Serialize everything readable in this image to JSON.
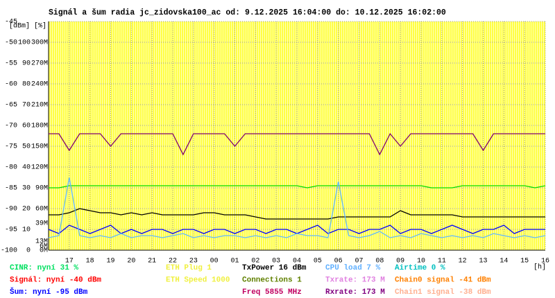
{
  "chart_data": {
    "type": "line",
    "title": "Signál a šum radia jc_zidovska100_ac od: 9.12.2025 16:04:00 do: 10.12.2025 16:02:00",
    "y_axis_unit": "[dBm]",
    "y2_axis_unit": "[%]",
    "x_label": "[h]",
    "categories": [
      null,
      null,
      "17",
      null,
      "18",
      null,
      "19",
      null,
      "20",
      null,
      "21",
      null,
      "22",
      null,
      "23",
      null,
      "00",
      null,
      "01",
      null,
      "02",
      null,
      "03",
      null,
      "04",
      null,
      "05",
      null,
      "06",
      null,
      "07",
      null,
      "08",
      null,
      "09",
      null,
      "10",
      null,
      "11",
      null,
      "12",
      null,
      "13",
      null,
      "14",
      null,
      "15",
      null,
      "16"
    ],
    "ylim": [
      -100,
      -45
    ],
    "yticks": [
      -100,
      -95,
      -90,
      -85,
      -80,
      -75,
      -70,
      -65,
      -60,
      -55,
      -50,
      -45
    ],
    "y2lim": [
      0,
      110
    ],
    "y2ticks": [
      0,
      10,
      20,
      30,
      40,
      50,
      60,
      70,
      80,
      90,
      100
    ],
    "y3lim": [
      0,
      330
    ],
    "y3ticks": [
      {
        "value": 0,
        "label": "0M"
      },
      {
        "value": 60,
        "label": "60M"
      },
      {
        "value": 90,
        "label": "90M"
      },
      {
        "value": 120,
        "label": "120M"
      },
      {
        "value": 150,
        "label": "150M"
      },
      {
        "value": 180,
        "label": "180M"
      },
      {
        "value": 210,
        "label": "210M"
      },
      {
        "value": 240,
        "label": "240M"
      },
      {
        "value": 270,
        "label": "270M"
      },
      {
        "value": 300,
        "label": "300M"
      }
    ],
    "y3_markers": [
      {
        "value": 39,
        "label": "39M",
        "color": "#d080e0"
      },
      {
        "value": 13,
        "label": "13M",
        "color": "#ff80c0"
      },
      {
        "value": 6,
        "label": "6M",
        "color": "#ff40a0"
      }
    ],
    "grid": true,
    "background": "#ffff44",
    "series": [
      {
        "color": "#800070",
        "values": [
          -72,
          -72,
          -76,
          -72,
          -72,
          -72,
          -75,
          -72,
          -72,
          -72,
          -72,
          -72,
          -72,
          -77,
          -72,
          -72,
          -72,
          -72,
          -75,
          -72,
          -72,
          -72,
          -72,
          -72,
          -72,
          -72,
          -72,
          -72,
          -72,
          -72,
          -72,
          -72,
          -77,
          -72,
          -75,
          -72,
          -72,
          -72,
          -72,
          -72,
          -72,
          -72,
          -76,
          -72,
          -72,
          -72,
          -72,
          -72,
          -72
        ]
      },
      {
        "color": "#00dd00",
        "axis": "y2",
        "values": [
          30,
          30,
          31,
          31,
          31,
          31,
          31,
          31,
          31,
          31,
          31,
          31,
          31,
          31,
          31,
          31,
          31,
          31,
          31,
          31,
          31,
          31,
          31,
          31,
          31,
          30,
          31,
          31,
          31,
          31,
          31,
          31,
          31,
          31,
          31,
          31,
          31,
          30,
          30,
          30,
          31,
          31,
          31,
          31,
          31,
          31,
          31,
          30,
          31
        ]
      },
      {
        "color": "#0000ff",
        "values": [
          -95,
          -96,
          -94,
          -95,
          -96,
          -95,
          -94,
          -96,
          -95,
          -96,
          -95,
          -95,
          -96,
          -95,
          -95,
          -96,
          -95,
          -95,
          -96,
          -95,
          -95,
          -96,
          -95,
          -95,
          -96,
          -95,
          -94,
          -96,
          -95,
          -95,
          -96,
          -95,
          -95,
          -94,
          -96,
          -95,
          -95,
          -96,
          -95,
          -94,
          -95,
          -96,
          -95,
          -95,
          -94,
          -96,
          -95,
          -95,
          -95
        ]
      },
      {
        "color": "#000000",
        "axis": "y2",
        "values": [
          17,
          17,
          18,
          20,
          19,
          18,
          18,
          17,
          18,
          17,
          18,
          17,
          17,
          17,
          17,
          18,
          18,
          17,
          17,
          17,
          16,
          15,
          15,
          15,
          15,
          15,
          15,
          15,
          16,
          16,
          16,
          16,
          16,
          16,
          19,
          17,
          17,
          17,
          17,
          17,
          16,
          16,
          16,
          16,
          16,
          16,
          16,
          16,
          16
        ]
      },
      {
        "color": "#60b8ff",
        "axis": "y2",
        "values": [
          6,
          7,
          35,
          7,
          6,
          7,
          6,
          8,
          6,
          7,
          7,
          6,
          7,
          8,
          6,
          7,
          6,
          7,
          7,
          6,
          7,
          6,
          7,
          6,
          8,
          7,
          7,
          6,
          33,
          7,
          6,
          7,
          9,
          6,
          7,
          6,
          8,
          7,
          6,
          7,
          6,
          7,
          6,
          8,
          7,
          6,
          7,
          6,
          7
        ]
      }
    ],
    "legend": [
      {
        "text": "CINR: nyní 31 %",
        "color": "#00e060"
      },
      {
        "text": "Signál: nyní -40 dBm",
        "color": "#ff0000"
      },
      {
        "text": "Šum: nyní -95 dBm",
        "color": "#0000ff"
      },
      {
        "text": "ETH Plug 1",
        "color": "#f0f040"
      },
      {
        "text": "ETH Speed 1000",
        "color": "#f0f040"
      },
      {
        "text": "TxPower 16 dBm",
        "color": "#000000"
      },
      {
        "text": "Connections 1",
        "color": "#608000"
      },
      {
        "text": "Freq 5855 MHz",
        "color": "#c00060"
      },
      {
        "text": "CPU load 7 %",
        "color": "#60b0ff"
      },
      {
        "text": "Txrate: 173 M",
        "color": "#e080e0"
      },
      {
        "text": "Rxrate: 173 M",
        "color": "#800080"
      },
      {
        "text": "Airtime 0 %",
        "color": "#00c0c0"
      },
      {
        "text": "Chain0 signal -41 dBm",
        "color": "#ff8000"
      },
      {
        "text": "Chain1 signal -38 dBm",
        "color": "#ffb090"
      }
    ]
  }
}
